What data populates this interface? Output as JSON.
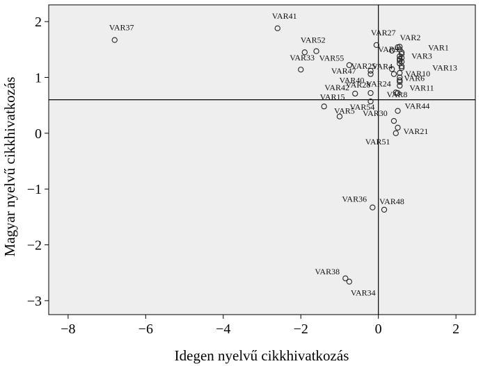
{
  "chart_data": {
    "type": "scatter",
    "xlabel": "Idegen nyelvű cikkhivatkozás",
    "ylabel": "Magyar nyelvű cikkhivatkozás",
    "xlim": [
      -8.5,
      2.5
    ],
    "ylim": [
      -3.25,
      2.3
    ],
    "x_ticks": [
      -8,
      -6,
      -4,
      -2,
      0,
      2
    ],
    "y_ticks": [
      -3,
      -2,
      -1,
      0,
      1,
      2
    ],
    "x_tick_labels": [
      "−8",
      "−6",
      "−4",
      "−2",
      "0",
      "2"
    ],
    "y_tick_labels": [
      "−3",
      "−2",
      "−1",
      "0",
      "1",
      "2"
    ],
    "reference_lines": {
      "x": 0,
      "y": 0.6
    },
    "grid": false,
    "plot_background": "#eeeeee",
    "marker": "open-circle",
    "points": [
      {
        "label": "VAR37",
        "x": -6.8,
        "y": 1.67,
        "label_dx": -8,
        "label_dy": -14
      },
      {
        "label": "VAR41",
        "x": -2.6,
        "y": 1.88,
        "label_dx": -8,
        "label_dy": -14
      },
      {
        "label": "VAR52",
        "x": -1.9,
        "y": 1.45,
        "label_dx": -6,
        "label_dy": -14
      },
      {
        "label": "VAR55",
        "x": -1.6,
        "y": 1.47,
        "label_dx": 4,
        "label_dy": 14
      },
      {
        "label": "VAR33",
        "x": -2.0,
        "y": 1.14,
        "label_dx": -16,
        "label_dy": -13
      },
      {
        "label": "VAR47",
        "x": -0.75,
        "y": 1.22,
        "label_dx": -26,
        "label_dy": 12
      },
      {
        "label": "VAR25",
        "x": -0.2,
        "y": 1.12,
        "label_dx": -28,
        "label_dy": -3
      },
      {
        "label": "VAR40",
        "x": -0.2,
        "y": 1.06,
        "label_dx": -45,
        "label_dy": 13
      },
      {
        "label": "VAR27",
        "x": -0.05,
        "y": 1.58,
        "label_dx": -8,
        "label_dy": -14
      },
      {
        "label": "VAR2",
        "x": 0.5,
        "y": 1.54,
        "label_dx": 3,
        "label_dy": -10
      },
      {
        "label": "VAR1",
        "x": 0.6,
        "y": 1.45,
        "label_dx": 38,
        "label_dy": -3
      },
      {
        "label": "VAR9",
        "x": 0.35,
        "y": 1.48,
        "label_dx": -20,
        "label_dy": 2
      },
      {
        "label": "VAR3",
        "x": 0.6,
        "y": 1.35,
        "label_dx": 14,
        "label_dy": 1
      },
      {
        "label": "VAR4",
        "x": 0.55,
        "y": 1.3,
        "label_dx": -40,
        "label_dy": 12
      },
      {
        "label": "VAR13",
        "x": 0.6,
        "y": 1.2,
        "label_dx": 44,
        "label_dy": 6
      },
      {
        "label": "VAR10",
        "x": 0.55,
        "y": 1.08,
        "label_dx": 8,
        "label_dy": 5
      },
      {
        "label": "VAR24",
        "x": 0.4,
        "y": 1.06,
        "label_dx": -40,
        "label_dy": 18
      },
      {
        "label": "VAR6",
        "x": 0.55,
        "y": 0.95,
        "label_dx": 6,
        "label_dy": 1
      },
      {
        "label": "VAR28",
        "x": -0.2,
        "y": 0.72,
        "label_dx": -36,
        "label_dy": -8
      },
      {
        "label": "VAR42",
        "x": -0.6,
        "y": 0.71,
        "label_dx": -44,
        "label_dy": -5
      },
      {
        "label": "VAR8",
        "x": 0.5,
        "y": 0.72,
        "label_dx": -16,
        "label_dy": 6
      },
      {
        "label": "VAR11",
        "x": 0.55,
        "y": 0.85,
        "label_dx": 14,
        "label_dy": 7
      },
      {
        "label": "VAR54",
        "x": -0.2,
        "y": 0.57,
        "label_dx": -30,
        "label_dy": 12
      },
      {
        "label": "VAR15",
        "x": -1.4,
        "y": 0.48,
        "label_dx": -6,
        "label_dy": -10
      },
      {
        "label": "VAR5",
        "x": -1.0,
        "y": 0.3,
        "label_dx": -8,
        "label_dy": -4
      },
      {
        "label": "VAR44",
        "x": 0.5,
        "y": 0.4,
        "label_dx": 10,
        "label_dy": -3
      },
      {
        "label": "VAR30",
        "x": 0.4,
        "y": 0.22,
        "label_dx": -45,
        "label_dy": -7
      },
      {
        "label": "VAR21",
        "x": 0.5,
        "y": 0.1,
        "label_dx": 8,
        "label_dy": 9
      },
      {
        "label": "VAR51",
        "x": 0.45,
        "y": 0.0,
        "label_dx": -44,
        "label_dy": 16
      },
      {
        "label": "VAR36",
        "x": -0.15,
        "y": -1.33,
        "label_dx": -44,
        "label_dy": -8
      },
      {
        "label": "VAR48",
        "x": 0.15,
        "y": -1.37,
        "label_dx": -7,
        "label_dy": -8
      },
      {
        "label": "VAR38",
        "x": -0.85,
        "y": -2.6,
        "label_dx": -44,
        "label_dy": -6
      },
      {
        "label": "VAR34",
        "x": -0.75,
        "y": -2.66,
        "label_dx": 2,
        "label_dy": 20
      }
    ],
    "extra_points": [
      {
        "x": 0.55,
        "y": 1.55
      },
      {
        "x": 0.55,
        "y": 1.5
      },
      {
        "x": 0.6,
        "y": 1.42
      },
      {
        "x": 0.55,
        "y": 1.38
      },
      {
        "x": 0.55,
        "y": 1.33
      },
      {
        "x": 0.6,
        "y": 1.28
      },
      {
        "x": 0.55,
        "y": 1.25
      },
      {
        "x": 0.6,
        "y": 1.17
      },
      {
        "x": 0.35,
        "y": 1.15
      },
      {
        "x": 0.55,
        "y": 1.0
      },
      {
        "x": 0.55,
        "y": 0.92
      },
      {
        "x": 0.45,
        "y": 0.73
      }
    ]
  }
}
